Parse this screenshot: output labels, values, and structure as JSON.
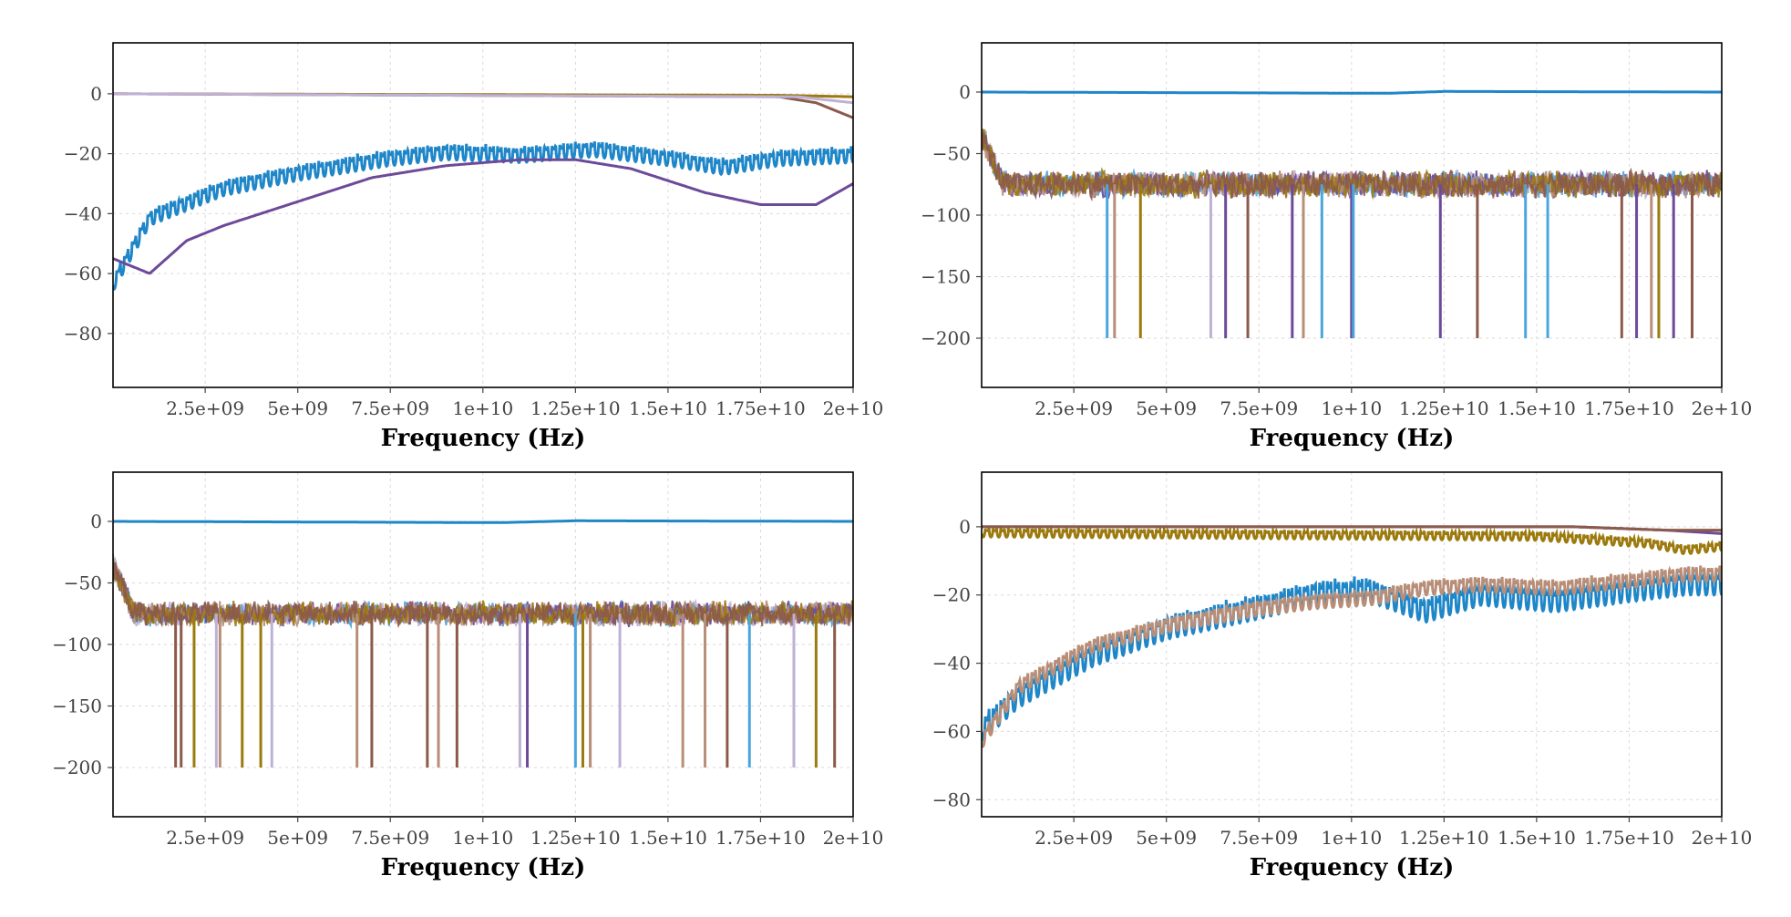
{
  "chart_data": [
    {
      "type": "line",
      "xlabel": "Frequency (Hz)",
      "xlim": [
        10000000.0,
        20000000000.0
      ],
      "ylim": [
        -98,
        17
      ],
      "x_ticks": [
        2500000000.0,
        5000000000.0,
        7500000000.0,
        10000000000.0,
        12500000000.0,
        15000000000.0,
        17500000000.0,
        20000000000.0
      ],
      "x_tick_labels": [
        "2.5e+09",
        "5e+09",
        "7.5e+09",
        "1e+10",
        "1.25e+10",
        "1.5e+10",
        "1.75e+10",
        "2e+10"
      ],
      "y_ticks": [
        0,
        -20,
        -40,
        -60,
        -80
      ],
      "y_tick_labels": [
        "0",
        "−20",
        "−40",
        "−60",
        "−80"
      ],
      "grid": true,
      "series": [
        {
          "color": "#1f86c8",
          "style": "ripple",
          "x": [
            10000000.0,
            1000000000.0,
            3000000000.0,
            5000000000.0,
            7500000000.0,
            9000000000.0,
            11000000000.0,
            13000000000.0,
            15000000000.0,
            16500000000.0,
            18000000000.0,
            20000000000.0
          ],
          "values": [
            -60,
            -38,
            -28,
            -23,
            -18,
            -16,
            -17,
            -15,
            -18,
            -21,
            -18,
            -17
          ],
          "ripple": 6
        },
        {
          "color": "#6d4a99",
          "style": "smooth",
          "x": [
            10000000.0,
            1000000000.0,
            2000000000.0,
            3000000000.0,
            5000000000.0,
            7000000000.0,
            9000000000.0,
            11000000000.0,
            12500000000.0,
            14000000000.0,
            16000000000.0,
            17500000000.0,
            19000000000.0,
            20000000000.0
          ],
          "values": [
            -55,
            -60,
            -49,
            -44,
            -36,
            -28,
            -24,
            -22,
            -22,
            -25,
            -33,
            -37,
            -37,
            -30
          ]
        },
        {
          "color": "#9c7a0e",
          "style": "flat",
          "x": [
            10000000.0,
            18000000000.0,
            20000000000.0
          ],
          "values": [
            0,
            -0.5,
            -1
          ]
        },
        {
          "color": "#8b5a4a",
          "style": "flat",
          "x": [
            10000000.0,
            18000000000.0,
            19000000000.0,
            20000000000.0
          ],
          "values": [
            0,
            -1,
            -3,
            -8
          ]
        },
        {
          "color": "#bfb0d6",
          "style": "flat",
          "x": [
            10000000.0,
            18500000000.0,
            20000000000.0
          ],
          "values": [
            0,
            -1,
            -3
          ]
        }
      ]
    },
    {
      "type": "line",
      "xlabel": "Frequency (Hz)",
      "xlim": [
        10000000.0,
        20000000000.0
      ],
      "ylim": [
        -240,
        40
      ],
      "x_ticks": [
        2500000000.0,
        5000000000.0,
        7500000000.0,
        10000000000.0,
        12500000000.0,
        15000000000.0,
        17500000000.0,
        20000000000.0
      ],
      "x_tick_labels": [
        "2.5e+09",
        "5e+09",
        "7.5e+09",
        "1e+10",
        "1.25e+10",
        "1.5e+10",
        "1.75e+10",
        "2e+10"
      ],
      "y_ticks": [
        0,
        -50,
        -100,
        -150,
        -200
      ],
      "y_tick_labels": [
        "0",
        "−50",
        "−100",
        "−150",
        "−200"
      ],
      "grid": true,
      "noise_band": {
        "level": -75,
        "spread": 12,
        "colors": [
          "#bfb0d6",
          "#4aa6dd",
          "#6d4a99",
          "#b88e78",
          "#9c7a0e",
          "#8b5a4a"
        ]
      },
      "spikes": [
        {
          "x": 3400000000.0,
          "values": -200,
          "color": "#4aa6dd"
        },
        {
          "x": 3600000000.0,
          "values": -200,
          "color": "#b88e78"
        },
        {
          "x": 4300000000.0,
          "values": -200,
          "color": "#9c7a0e"
        },
        {
          "x": 6200000000.0,
          "values": -200,
          "color": "#bfb0d6"
        },
        {
          "x": 6600000000.0,
          "values": -200,
          "color": "#6d4a99"
        },
        {
          "x": 7200000000.0,
          "values": -200,
          "color": "#8b5a4a"
        },
        {
          "x": 8400000000.0,
          "values": -200,
          "color": "#6d4a99"
        },
        {
          "x": 8700000000.0,
          "values": -200,
          "color": "#b88e78"
        },
        {
          "x": 9200000000.0,
          "values": -200,
          "color": "#4aa6dd"
        },
        {
          "x": 10000000000.0,
          "values": -200,
          "color": "#6d4a99"
        },
        {
          "x": 10050000000.0,
          "values": -200,
          "color": "#4aa6dd"
        },
        {
          "x": 12400000000.0,
          "values": -200,
          "color": "#6d4a99"
        },
        {
          "x": 13400000000.0,
          "values": -200,
          "color": "#8b5a4a"
        },
        {
          "x": 14700000000.0,
          "values": -200,
          "color": "#4aa6dd"
        },
        {
          "x": 15300000000.0,
          "values": -200,
          "color": "#4aa6dd"
        },
        {
          "x": 17300000000.0,
          "values": -200,
          "color": "#8b5a4a"
        },
        {
          "x": 17700000000.0,
          "values": -200,
          "color": "#6d4a99"
        },
        {
          "x": 18100000000.0,
          "values": -200,
          "color": "#b88e78"
        },
        {
          "x": 18300000000.0,
          "values": -200,
          "color": "#9c7a0e"
        },
        {
          "x": 18700000000.0,
          "values": -200,
          "color": "#6d4a99"
        },
        {
          "x": 19200000000.0,
          "values": -200,
          "color": "#8b5a4a"
        }
      ],
      "series": [
        {
          "color": "#1f86c8",
          "style": "flat",
          "x": [
            10000000.0,
            11000000000.0,
            12500000000.0,
            20000000000.0
          ],
          "values": [
            0,
            -1,
            0.5,
            0
          ]
        }
      ]
    },
    {
      "type": "line",
      "xlabel": "Frequency (Hz)",
      "xlim": [
        10000000.0,
        20000000000.0
      ],
      "ylim": [
        -240,
        40
      ],
      "x_ticks": [
        2500000000.0,
        5000000000.0,
        7500000000.0,
        10000000000.0,
        12500000000.0,
        15000000000.0,
        17500000000.0,
        20000000000.0
      ],
      "x_tick_labels": [
        "2.5e+09",
        "5e+09",
        "7.5e+09",
        "1e+10",
        "1.25e+10",
        "1.5e+10",
        "1.75e+10",
        "2e+10"
      ],
      "y_ticks": [
        0,
        -50,
        -100,
        -150,
        -200
      ],
      "y_tick_labels": [
        "0",
        "−50",
        "−100",
        "−150",
        "−200"
      ],
      "grid": true,
      "noise_band": {
        "level": -75,
        "spread": 11,
        "colors": [
          "#bfb0d6",
          "#4aa6dd",
          "#6d4a99",
          "#b88e78",
          "#9c7a0e",
          "#8b5a4a"
        ]
      },
      "spikes": [
        {
          "x": 1700000000.0,
          "values": -200,
          "color": "#8b5a4a"
        },
        {
          "x": 1850000000.0,
          "values": -200,
          "color": "#8b5a4a"
        },
        {
          "x": 2200000000.0,
          "values": -200,
          "color": "#9c7a0e"
        },
        {
          "x": 2800000000.0,
          "values": -200,
          "color": "#bfb0d6"
        },
        {
          "x": 2900000000.0,
          "values": -200,
          "color": "#b88e78"
        },
        {
          "x": 3500000000.0,
          "values": -200,
          "color": "#9c7a0e"
        },
        {
          "x": 4000000000.0,
          "values": -200,
          "color": "#9c7a0e"
        },
        {
          "x": 4300000000.0,
          "values": -200,
          "color": "#bfb0d6"
        },
        {
          "x": 6600000000.0,
          "values": -200,
          "color": "#b88e78"
        },
        {
          "x": 7000000000.0,
          "values": -200,
          "color": "#8b5a4a"
        },
        {
          "x": 8500000000.0,
          "values": -200,
          "color": "#8b5a4a"
        },
        {
          "x": 8800000000.0,
          "values": -200,
          "color": "#b88e78"
        },
        {
          "x": 9300000000.0,
          "values": -200,
          "color": "#8b5a4a"
        },
        {
          "x": 11000000000.0,
          "values": -200,
          "color": "#bfb0d6"
        },
        {
          "x": 11200000000.0,
          "values": -200,
          "color": "#6d4a99"
        },
        {
          "x": 12500000000.0,
          "values": -200,
          "color": "#4aa6dd"
        },
        {
          "x": 12700000000.0,
          "values": -200,
          "color": "#9c7a0e"
        },
        {
          "x": 12900000000.0,
          "values": -200,
          "color": "#b88e78"
        },
        {
          "x": 13700000000.0,
          "values": -200,
          "color": "#bfb0d6"
        },
        {
          "x": 15400000000.0,
          "values": -200,
          "color": "#b88e78"
        },
        {
          "x": 16000000000.0,
          "values": -200,
          "color": "#b88e78"
        },
        {
          "x": 16600000000.0,
          "values": -200,
          "color": "#8b5a4a"
        },
        {
          "x": 17200000000.0,
          "values": -200,
          "color": "#4aa6dd"
        },
        {
          "x": 18400000000.0,
          "values": -200,
          "color": "#bfb0d6"
        },
        {
          "x": 19000000000.0,
          "values": -200,
          "color": "#9c7a0e"
        },
        {
          "x": 19500000000.0,
          "values": -200,
          "color": "#8b5a4a"
        }
      ],
      "series": [
        {
          "color": "#1f86c8",
          "style": "flat",
          "x": [
            10000000.0,
            10500000000.0,
            12500000000.0,
            20000000000.0
          ],
          "values": [
            0,
            -1,
            0.5,
            0
          ]
        }
      ]
    },
    {
      "type": "line",
      "xlabel": "Frequency (Hz)",
      "xlim": [
        10000000.0,
        20000000000.0
      ],
      "ylim": [
        -85,
        16
      ],
      "x_ticks": [
        2500000000.0,
        5000000000.0,
        7500000000.0,
        10000000000.0,
        12500000000.0,
        15000000000.0,
        17500000000.0,
        20000000000.0
      ],
      "x_tick_labels": [
        "2.5e+09",
        "5e+09",
        "7.5e+09",
        "1e+10",
        "1.25e+10",
        "1.5e+10",
        "1.75e+10",
        "2e+10"
      ],
      "y_ticks": [
        0,
        -20,
        -40,
        -60,
        -80
      ],
      "y_tick_labels": [
        "0",
        "−20",
        "−40",
        "−60",
        "−80"
      ],
      "grid": true,
      "series": [
        {
          "color": "#1f86c8",
          "style": "ripple",
          "x": [
            10000000.0,
            1000000000.0,
            3000000000.0,
            5000000000.0,
            7500000000.0,
            9000000000.0,
            10500000000.0,
            12000000000.0,
            13500000000.0,
            15500000000.0,
            17500000000.0,
            19000000000.0,
            20000000000.0
          ],
          "values": [
            -55,
            -45,
            -33,
            -25,
            -19,
            -15,
            -14,
            -20,
            -15,
            -17,
            -14,
            -12,
            -12
          ],
          "ripple": 8
        },
        {
          "color": "#b88e78",
          "style": "ripple",
          "x": [
            10000000.0,
            1000000000.0,
            3000000000.0,
            5000000000.0,
            7500000000.0,
            9000000000.0,
            10500000000.0,
            12000000000.0,
            13500000000.0,
            15500000000.0,
            17500000000.0,
            19000000000.0,
            20000000000.0
          ],
          "values": [
            -60,
            -44,
            -32,
            -26,
            -21,
            -19,
            -18,
            -15,
            -14,
            -15,
            -13,
            -11,
            -11
          ],
          "ripple": 5
        },
        {
          "color": "#9c7a0e",
          "style": "ripple",
          "x": [
            10000000.0,
            15000000000.0,
            18000000000.0,
            19000000000.0,
            20000000000.0
          ],
          "values": [
            0,
            -1,
            -3,
            -5,
            -4
          ],
          "ripple": 3
        },
        {
          "color": "#6d4a99",
          "style": "flat",
          "x": [
            10000000.0,
            16000000000.0,
            18500000000.0,
            20000000000.0
          ],
          "values": [
            0,
            0,
            -1,
            -2
          ]
        },
        {
          "color": "#8b5a4a",
          "style": "flat",
          "x": [
            10000000.0,
            16000000000.0,
            18500000000.0,
            20000000000.0
          ],
          "values": [
            0,
            0,
            -1,
            -1
          ]
        }
      ]
    }
  ]
}
